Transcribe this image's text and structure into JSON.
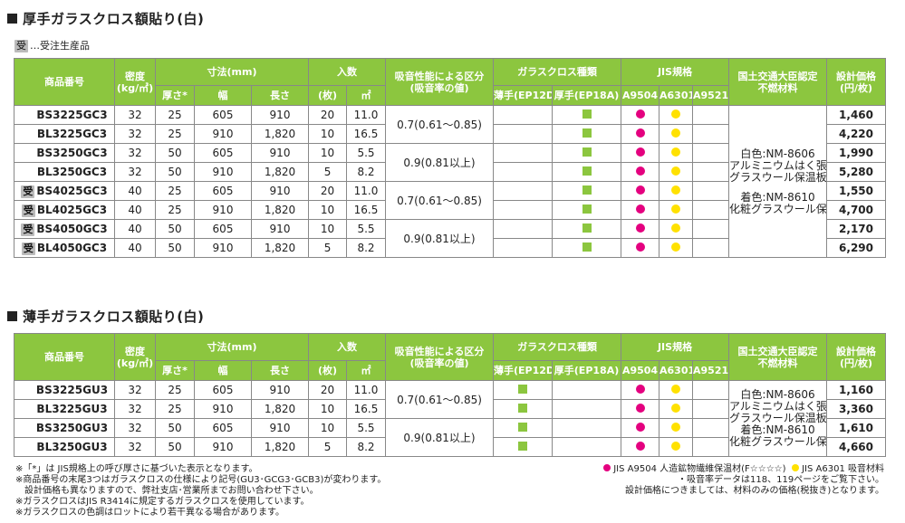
{
  "sections": [
    {
      "title": "厚手ガラスクロス額貼り(白)",
      "header": {
        "product_code": "商品番号",
        "density": "密度",
        "density_unit": "(kg/㎥)",
        "dimensions": "寸法(mm)",
        "thickness": "厚さ*",
        "width": "幅",
        "length": "長さ",
        "pack": "入数",
        "pack_count": "(枚)",
        "pack_area": "㎡",
        "absorption": "吸音性能による区分",
        "absorption_sub": "(吸音率の値)",
        "cloth_type": "ガラスクロス種類",
        "thin": "薄手(EP12D)",
        "thick": "厚手(EP18A)",
        "jis": "JIS規格",
        "jis_a9504": "A9504",
        "jis_a6301": "A6301",
        "jis_a9521": "A9521",
        "cert": "国土交通大臣認定",
        "cert_sub": "不燃材料",
        "price": "設計価格",
        "price_unit": "(円/枚)"
      },
      "rows": [
        {
          "badge": "",
          "code": "BS3225GC3",
          "density": "32",
          "thickness": "25",
          "width": "605",
          "length": "910",
          "count": "20",
          "area": "11.0",
          "price": "1,460"
        },
        {
          "badge": "",
          "code": "BL3225GC3",
          "density": "32",
          "thickness": "25",
          "width": "910",
          "length": "1,820",
          "count": "10",
          "area": "16.5",
          "price": "4,220"
        },
        {
          "badge": "",
          "code": "BS3250GC3",
          "density": "32",
          "thickness": "50",
          "width": "605",
          "length": "910",
          "count": "10",
          "area": "5.5",
          "price": "1,990"
        },
        {
          "badge": "",
          "code": "BL3250GC3",
          "density": "32",
          "thickness": "50",
          "width": "910",
          "length": "1,820",
          "count": "5",
          "area": "8.2",
          "price": "5,280"
        },
        {
          "badge": "受",
          "code": "BS4025GC3",
          "density": "40",
          "thickness": "25",
          "width": "605",
          "length": "910",
          "count": "20",
          "area": "11.0",
          "price": "1,550"
        },
        {
          "badge": "受",
          "code": "BL4025GC3",
          "density": "40",
          "thickness": "25",
          "width": "910",
          "length": "1,820",
          "count": "10",
          "area": "16.5",
          "price": "4,700"
        },
        {
          "badge": "受",
          "code": "BS4050GC3",
          "density": "40",
          "thickness": "50",
          "width": "605",
          "length": "910",
          "count": "10",
          "area": "5.5",
          "price": "2,170"
        },
        {
          "badge": "受",
          "code": "BL4050GC3",
          "density": "40",
          "thickness": "50",
          "width": "910",
          "length": "1,820",
          "count": "5",
          "area": "8.2",
          "price": "6,290"
        }
      ],
      "absorption_groups": [
        "0.7(0.61～0.85)",
        "0.9(0.81以上)",
        "0.7(0.61～0.85)",
        "0.9(0.81以上)"
      ],
      "cert_lines": [
        "白色:NM-8606",
        "アルミニウムはく張／",
        "グラスウール保温板",
        "",
        "着色:NM-8610",
        "化粧グラスウール保温板"
      ]
    },
    {
      "title": "薄手ガラスクロス額貼り(白)",
      "rows": [
        {
          "badge": "",
          "code": "BS3225GU3",
          "density": "32",
          "thickness": "25",
          "width": "605",
          "length": "910",
          "count": "20",
          "area": "11.0",
          "price": "1,160"
        },
        {
          "badge": "",
          "code": "BL3225GU3",
          "density": "32",
          "thickness": "25",
          "width": "910",
          "length": "1,820",
          "count": "10",
          "area": "16.5",
          "price": "3,360"
        },
        {
          "badge": "",
          "code": "BS3250GU3",
          "density": "32",
          "thickness": "50",
          "width": "605",
          "length": "910",
          "count": "10",
          "area": "5.5",
          "price": "1,610"
        },
        {
          "badge": "",
          "code": "BL3250GU3",
          "density": "32",
          "thickness": "50",
          "width": "910",
          "length": "1,820",
          "count": "5",
          "area": "8.2",
          "price": "4,660"
        }
      ],
      "absorption_groups": [
        "0.7(0.61～0.85)",
        "0.9(0.81以上)"
      ],
      "cert_lines": [
        "白色:NM-8606",
        "アルミニウムはく張／",
        "グラスウール保温板",
        "着色:NM-8610",
        "化粧グラスウール保温板"
      ]
    }
  ],
  "badge_legend": {
    "badge": "受",
    "text": "…受注生産品"
  },
  "footnotes_left": [
    "※「*」は JIS規格上の呼び厚さに基づいた表示となります。",
    "※商品番号の末尾3つはガラスクロスの仕様により記号(GU3･GCG3･GCB3)が変わります。",
    "　設計価格も異なりますので、弊社支店･営業所までお問い合わせ下さい。",
    "※ガラスクロスはJIS R3414に規定するガラスクロスを使用しています。",
    "※ガラスクロスの色調はロットにより若干異なる場合があります。"
  ],
  "footnotes_right": {
    "jis_a9504_label": "JIS A9504 人造鉱物繊維保温材(F☆☆☆☆)",
    "jis_a6301_label": "JIS A6301 吸音材料",
    "note1": "・吸音率データは118、119ページをご覧下さい。",
    "note2": "設計価格につきましては、材料のみの価格(税抜き)となります。"
  },
  "colors": {
    "header_green": "#8cc63f",
    "jis_a9504": "#e4007f",
    "jis_a6301": "#ffe100",
    "badge_gray": "#bbbbbb"
  },
  "icons": {
    "cloth_marker": "green-square-icon",
    "jis_a9504_marker": "magenta-dot-icon",
    "jis_a6301_marker": "yellow-dot-icon"
  }
}
